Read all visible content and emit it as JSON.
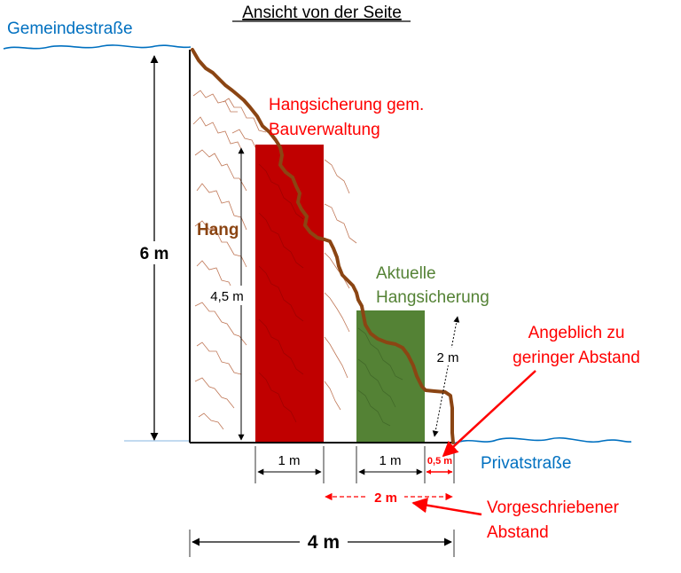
{
  "title": "Ansicht von der Seite",
  "roads": {
    "top": "Gemeindestraße",
    "bottom": "Privatstraße"
  },
  "labels": {
    "slope": "Hang",
    "required_protection": [
      "Hangsicherung gem.",
      "Bauverwaltung"
    ],
    "current_protection": [
      "Aktuelle",
      "Hangsicherung"
    ],
    "alleged": [
      "Angeblich zu",
      "geringer Abstand"
    ],
    "prescribed": [
      "Vorgeschriebener",
      "Abstand"
    ]
  },
  "dimensions": {
    "total_height": "6 m",
    "required_height": "4,5 m",
    "current_height": "2 m",
    "required_width": "1 m",
    "current_width": "1 m",
    "small_gap": "0,5 m",
    "prescribed_gap": "2 m",
    "total_width": "4 m"
  },
  "colors": {
    "road": "#0070c0",
    "required_block": "#c00000",
    "current_block": "#548235",
    "slope_line": "#8b4513",
    "annotation_red": "#ff0000",
    "current_label": "#548235"
  }
}
